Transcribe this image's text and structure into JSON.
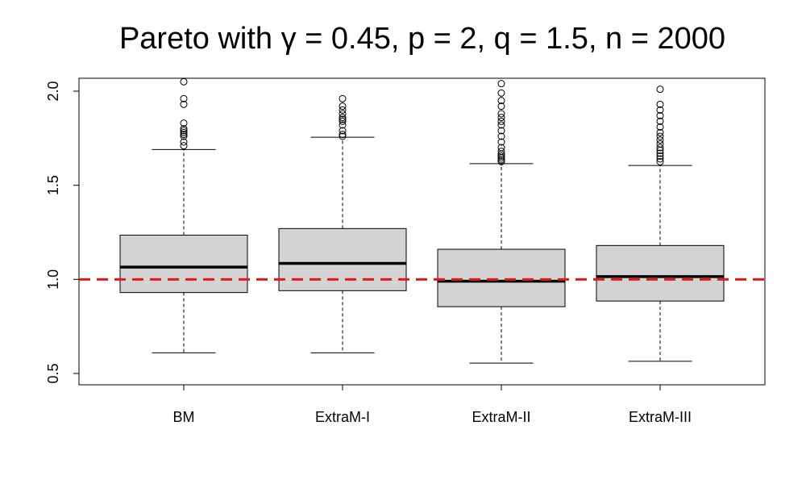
{
  "chart_data": {
    "type": "boxplot",
    "title": "Pareto with γ = 0.45, p = 2, q = 1.5, n = 2000",
    "xlabel": "",
    "ylabel": "",
    "ylim": [
      0.45,
      2.05
    ],
    "yticks": [
      0.5,
      1.0,
      1.5,
      2.0
    ],
    "ytick_labels": [
      "0.5",
      "1.0",
      "1.5",
      "2.0"
    ],
    "reference_line": {
      "y": 1.0,
      "color": "#e31a1c",
      "style": "dashed"
    },
    "box_fill": "#d3d3d3",
    "categories": [
      "BM",
      "ExtraM-I",
      "ExtraM-II",
      "ExtraM-III"
    ],
    "boxes": [
      {
        "name": "BM",
        "whisker_low": 0.61,
        "q1": 0.93,
        "median": 1.065,
        "q3": 1.235,
        "whisker_high": 1.69,
        "outliers": [
          1.71,
          1.73,
          1.76,
          1.77,
          1.78,
          1.79,
          1.8,
          1.83,
          1.93,
          1.96,
          2.05
        ]
      },
      {
        "name": "ExtraM-I",
        "whisker_low": 0.61,
        "q1": 0.94,
        "median": 1.085,
        "q3": 1.27,
        "whisker_high": 1.755,
        "outliers": [
          1.76,
          1.77,
          1.79,
          1.82,
          1.84,
          1.85,
          1.86,
          1.88,
          1.9,
          1.92,
          1.96
        ]
      },
      {
        "name": "ExtraM-II",
        "whisker_low": 0.555,
        "q1": 0.855,
        "median": 0.99,
        "q3": 1.16,
        "whisker_high": 1.615,
        "outliers": [
          1.625,
          1.635,
          1.645,
          1.655,
          1.665,
          1.68,
          1.7,
          1.73,
          1.76,
          1.79,
          1.82,
          1.84,
          1.86,
          1.88,
          1.92,
          1.95,
          1.99,
          2.04
        ]
      },
      {
        "name": "ExtraM-III",
        "whisker_low": 0.565,
        "q1": 0.885,
        "median": 1.015,
        "q3": 1.18,
        "whisker_high": 1.605,
        "outliers": [
          1.625,
          1.64,
          1.655,
          1.67,
          1.685,
          1.7,
          1.72,
          1.74,
          1.76,
          1.78,
          1.81,
          1.84,
          1.87,
          1.9,
          1.93,
          2.01
        ]
      }
    ]
  }
}
